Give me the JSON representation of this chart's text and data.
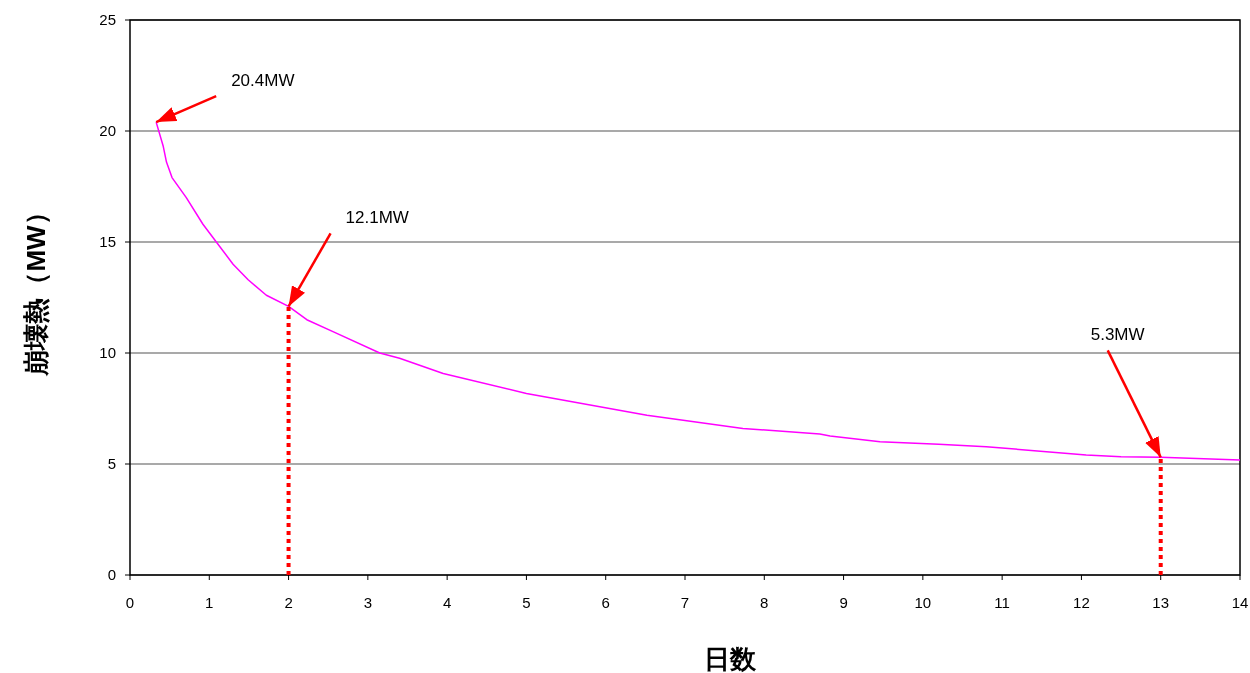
{
  "chart_data": {
    "type": "line",
    "xlabel": "日数",
    "ylabel": "崩壊熱（MW）",
    "xlim": [
      0,
      14
    ],
    "xticks": [
      0,
      1,
      2,
      3,
      4,
      5,
      6,
      7,
      8,
      9,
      10,
      11,
      12,
      13,
      14
    ],
    "ylim": [
      0,
      25
    ],
    "yticks": [
      0,
      5,
      10,
      15,
      20,
      25
    ],
    "grid": "y",
    "series": [
      {
        "color": "#ff00ff",
        "line_style": "solid",
        "x": [
          0.33,
          0.42,
          0.46,
          0.53,
          0.71,
          0.92,
          1.11,
          1.3,
          1.49,
          1.72,
          2,
          2.23,
          2.56,
          3.15,
          3.4,
          3.95,
          5,
          6.52,
          7.73,
          8.7,
          8.83,
          9.46,
          10.2,
          10.8,
          12.06,
          12.5,
          13,
          14
        ],
        "values": [
          20.4,
          19.3,
          18.6,
          17.9,
          17.0,
          15.8,
          14.9,
          14.0,
          13.3,
          12.6,
          12.1,
          11.5,
          10.96,
          10.0,
          9.76,
          9.08,
          8.18,
          7.2,
          6.6,
          6.35,
          6.26,
          6.0,
          5.89,
          5.78,
          5.4,
          5.33,
          5.3,
          5.18
        ]
      },
      {
        "color": "#ff0000",
        "line_style": "dotted",
        "x": [
          2,
          2
        ],
        "values": [
          0,
          12.1
        ]
      },
      {
        "color": "#ff0000",
        "line_style": "dotted",
        "x": [
          13,
          13
        ],
        "values": [
          0,
          5.3
        ]
      }
    ],
    "annotations": [
      {
        "text": "20.4MW",
        "x": 0.33,
        "y": 20.4
      },
      {
        "text": "12.1MW",
        "x": 2,
        "y": 12.1
      },
      {
        "text": "5.3MW",
        "x": 13,
        "y": 5.3
      }
    ]
  }
}
